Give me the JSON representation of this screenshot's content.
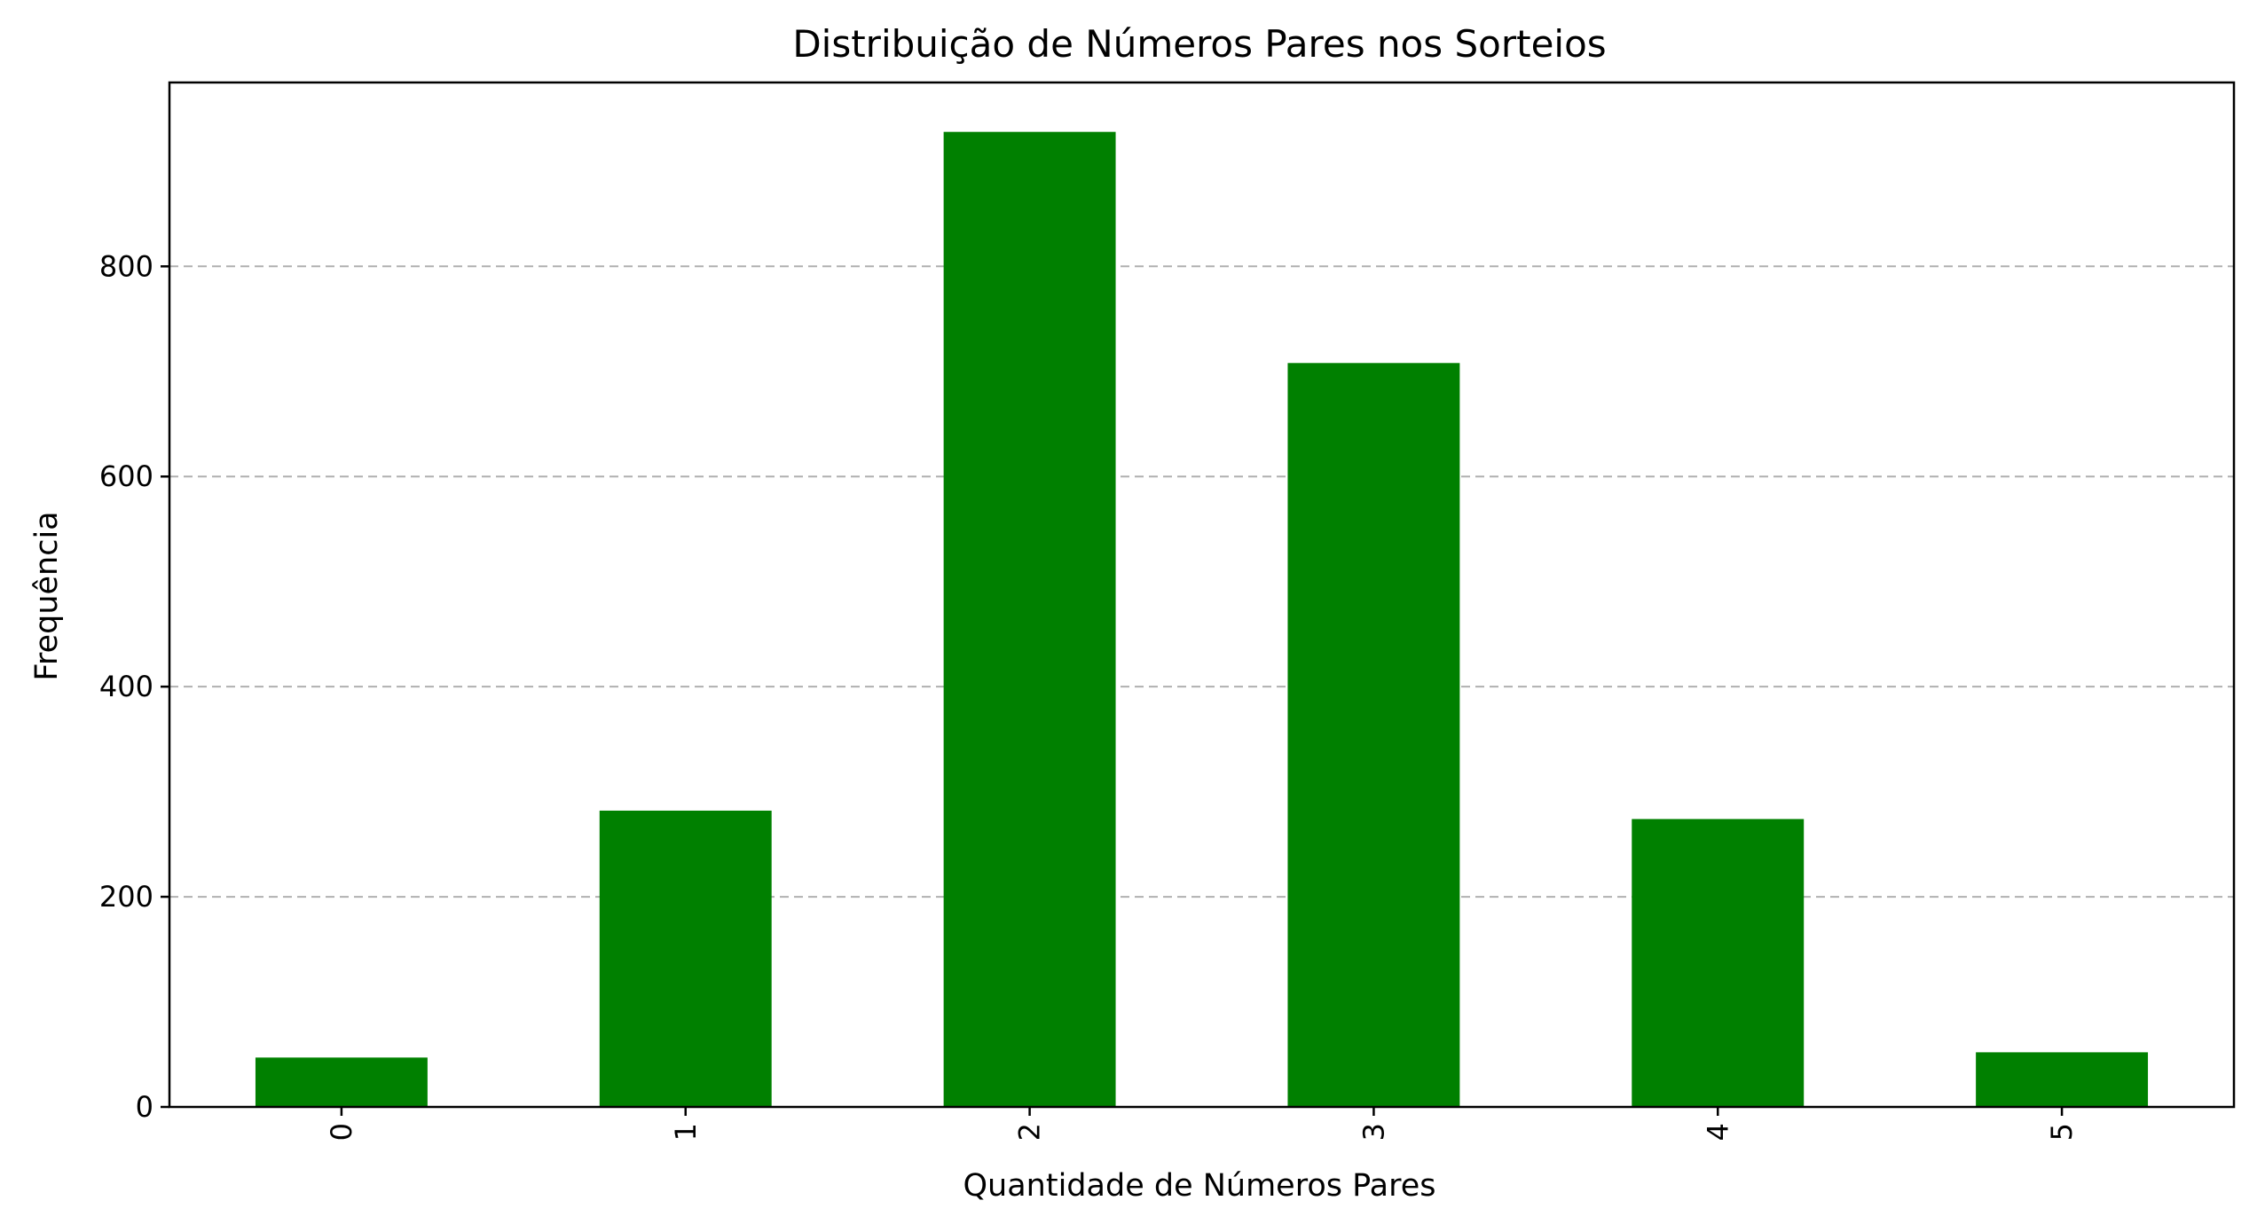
{
  "chart_data": {
    "type": "bar",
    "title": "Distribuição de Números Pares nos Sorteios",
    "xlabel": "Quantidade de Números Pares",
    "ylabel": "Frequência",
    "categories": [
      "0",
      "1",
      "2",
      "3",
      "4",
      "5"
    ],
    "values": [
      47,
      282,
      928,
      708,
      274,
      52
    ],
    "ylim": [
      0,
      975
    ],
    "yticks": [
      0,
      200,
      400,
      600,
      800
    ],
    "grid": "y-dashed",
    "colors": {
      "bar": "#008000"
    }
  }
}
